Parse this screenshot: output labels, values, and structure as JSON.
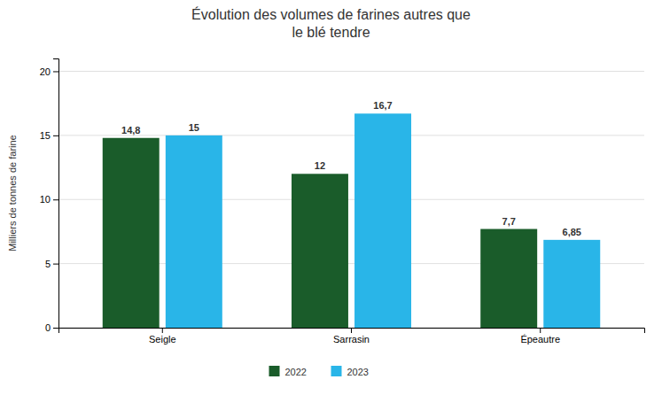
{
  "chart_data": {
    "type": "bar",
    "title": "Évolution des volumes de farines autres que\nle blé tendre",
    "categories": [
      "Seigle",
      "Sarrasin",
      "Épeautre"
    ],
    "series": [
      {
        "name": "2022",
        "color": "#1a5c2a",
        "values": [
          14.8,
          12,
          7.7
        ],
        "value_labels": [
          "14,8",
          "12",
          "7,7"
        ]
      },
      {
        "name": "2023",
        "color": "#29b5e8",
        "values": [
          15,
          16.7,
          6.85
        ],
        "value_labels": [
          "15",
          "16,7",
          "6,85"
        ]
      }
    ],
    "ylabel": "Milliers de tonnes de farine",
    "ylim": [
      0,
      21
    ],
    "yticks": [
      0,
      5,
      10,
      15,
      20
    ],
    "grid": true,
    "data_labels": true,
    "legend": "bottom"
  }
}
